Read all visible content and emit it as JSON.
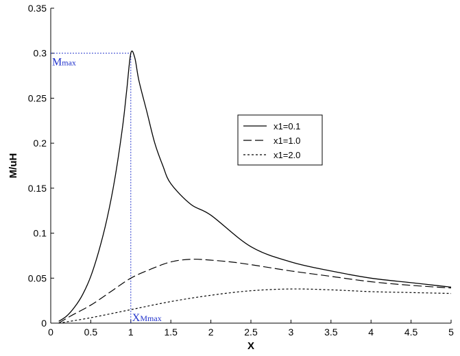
{
  "chart_data": {
    "type": "line",
    "title": "",
    "xlabel": "X",
    "ylabel": "M/uH",
    "xlim": [
      0,
      5
    ],
    "ylim": [
      0,
      0.35
    ],
    "grid": false,
    "legend_position": "center-right",
    "x_ticks": [
      "0",
      "0.5",
      "1",
      "1.5",
      "2",
      "2.5",
      "3",
      "3.5",
      "4",
      "4.5",
      "5"
    ],
    "y_ticks": [
      "0",
      "0.05",
      "0.1",
      "0.15",
      "0.2",
      "0.25",
      "0.3",
      "0.35"
    ],
    "series": [
      {
        "name": "x1=0.1",
        "line_style": "solid",
        "x": [
          0.1,
          0.2,
          0.3,
          0.4,
          0.5,
          0.6,
          0.7,
          0.8,
          0.9,
          0.95,
          1.0,
          1.05,
          1.1,
          1.2,
          1.3,
          1.4,
          1.5,
          1.75,
          2.0,
          2.5,
          3.0,
          3.5,
          4.0,
          4.5,
          5.0
        ],
        "y": [
          0.002,
          0.008,
          0.018,
          0.032,
          0.052,
          0.08,
          0.115,
          0.16,
          0.22,
          0.26,
          0.3,
          0.295,
          0.27,
          0.235,
          0.2,
          0.175,
          0.155,
          0.132,
          0.12,
          0.085,
          0.068,
          0.058,
          0.05,
          0.045,
          0.04
        ]
      },
      {
        "name": "x1=1.0",
        "line_style": "dashed",
        "x": [
          0.1,
          0.25,
          0.5,
          0.75,
          1.0,
          1.25,
          1.5,
          1.75,
          2.0,
          2.25,
          2.5,
          3.0,
          3.5,
          4.0,
          4.5,
          5.0
        ],
        "y": [
          0.0,
          0.008,
          0.02,
          0.035,
          0.05,
          0.06,
          0.068,
          0.071,
          0.07,
          0.068,
          0.065,
          0.058,
          0.052,
          0.046,
          0.042,
          0.039
        ]
      },
      {
        "name": "x1=2.0",
        "line_style": "dotted",
        "x": [
          0.1,
          0.5,
          1.0,
          1.5,
          2.0,
          2.5,
          3.0,
          3.5,
          4.0,
          4.5,
          5.0
        ],
        "y": [
          0.0,
          0.006,
          0.015,
          0.024,
          0.031,
          0.036,
          0.038,
          0.037,
          0.035,
          0.034,
          0.033
        ]
      }
    ],
    "annotations": {
      "mmax": {
        "main": "M",
        "sub": "max",
        "value": 0.3
      },
      "xmax": {
        "main": "X",
        "sub": "Mmax",
        "value": 1.0
      }
    }
  }
}
